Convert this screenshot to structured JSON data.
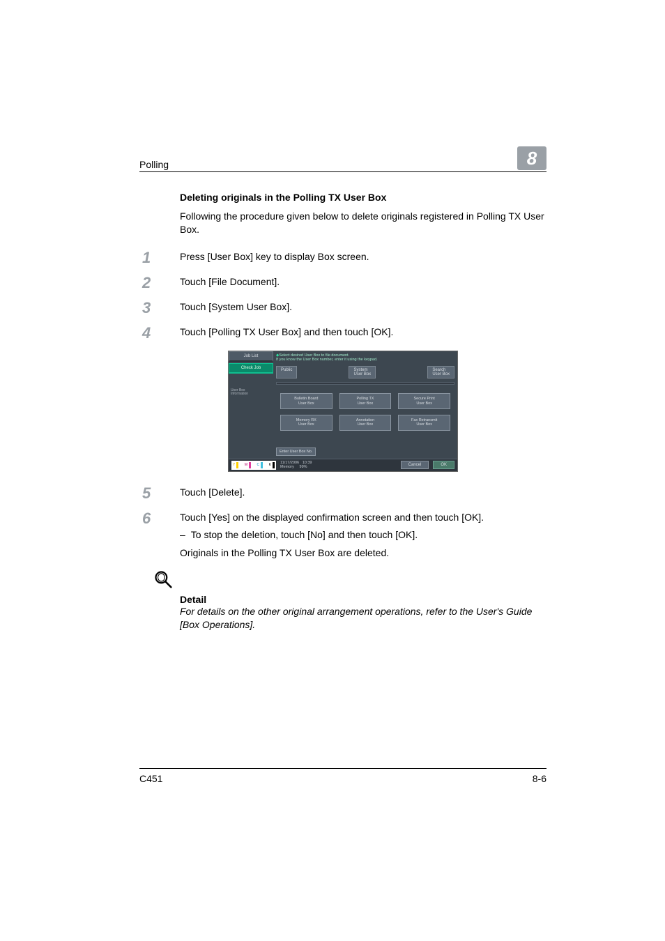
{
  "header": {
    "title": "Polling",
    "chapter": "8"
  },
  "section": {
    "heading": "Deleting originals in the Polling TX User Box"
  },
  "intro": "Following the procedure given below to delete originals registered in Polling TX User Box.",
  "steps": [
    {
      "num": "1",
      "text": "Press [User Box] key to display Box screen."
    },
    {
      "num": "2",
      "text": "Touch [File Document]."
    },
    {
      "num": "3",
      "text": "Touch [System User Box]."
    },
    {
      "num": "4",
      "text": "Touch [Polling TX User Box] and then touch [OK]."
    },
    {
      "num": "5",
      "text": "Touch [Delete]."
    },
    {
      "num": "6",
      "text": "Touch [Yes] on the displayed confirmation screen and then touch [OK].",
      "sub_dash": "–",
      "sub": "To stop the deletion, touch [No] and then touch [OK].",
      "follow": "Originals in the Polling TX User Box are deleted."
    }
  ],
  "screenshot": {
    "left_tab1": "Job List",
    "left_tab2": "Check Job",
    "left_label": "User Box\nInformation",
    "hint_l1": "Select desired User Box to file document.",
    "hint_l2": "If you know the User Box number, enter it using the keypad.",
    "toptabs": [
      "Public",
      "System\nUser Box",
      "Search\nUser Box"
    ],
    "cells": [
      "Bulletin Board\nUser Box",
      "Polling TX\nUser Box",
      "Secure Print\nUser Box",
      "Memory RX\nUser Box",
      "Annotation\nUser Box",
      "Fax Retransmit\nUser Box"
    ],
    "enter": "Enter User Box No.",
    "date": "11/17/2006",
    "time": "10:39",
    "mem_lbl": "Memory",
    "mem_val": "99%",
    "cancel": "Cancel",
    "ok": "OK",
    "colors": {
      "panel_bg": "#3d4750",
      "button_bg": "#5a6673",
      "active_bg": "#0a8a6a"
    }
  },
  "detail": {
    "title": "Detail",
    "body": "For details on the other original arrangement operations, refer to the User's Guide [Box Operations]."
  },
  "footer": {
    "left": "C451",
    "right": "8-6"
  }
}
